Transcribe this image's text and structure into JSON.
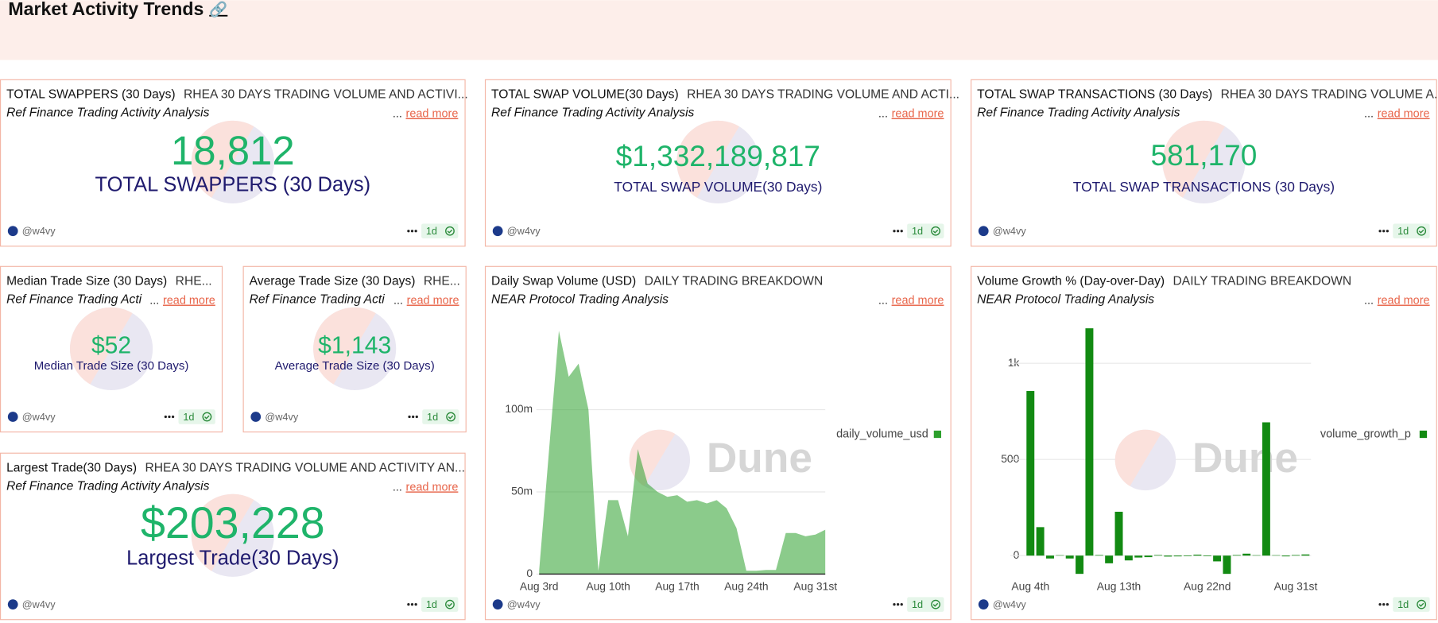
{
  "header": {
    "title": "Market Activity Trends",
    "icon": "🔗"
  },
  "common": {
    "author": "@w4vy",
    "refresh": "1d",
    "read_more": "read more",
    "ellipsis": "..."
  },
  "counters": [
    {
      "title": "TOTAL SWAPPERS (30 Days)",
      "query": "RHEA 30 DAYS TRADING VOLUME AND ACTIVI...",
      "description": "Ref Finance Trading Activity Analysis",
      "value": "18,812",
      "label": "TOTAL SWAPPERS (30 Days)"
    },
    {
      "title": "TOTAL SWAP VOLUME(30 Days)",
      "query": "RHEA 30 DAYS TRADING VOLUME AND ACTI...",
      "description": "Ref Finance Trading Activity Analysis",
      "value": "$1,332,189,817",
      "label": "TOTAL SWAP VOLUME(30 Days)"
    },
    {
      "title": "TOTAL SWAP TRANSACTIONS (30 Days)",
      "query": "RHEA 30 DAYS TRADING VOLUME A...",
      "description": "Ref Finance Trading Activity Analysis",
      "value": "581,170",
      "label": "TOTAL SWAP TRANSACTIONS (30 Days)"
    },
    {
      "title": "Median Trade Size (30 Days)",
      "query": "RHE...",
      "description": "Ref Finance Trading Acti",
      "value": "$52",
      "label": "Median Trade Size (30 Days)"
    },
    {
      "title": "Average Trade Size (30 Days)",
      "query": "RHE...",
      "description": "Ref Finance Trading Acti",
      "value": "$1,143",
      "label": "Average Trade Size (30 Days)"
    },
    {
      "title": "Largest Trade(30 Days)",
      "query": "RHEA 30 DAYS TRADING VOLUME AND ACTIVITY AN...",
      "description": "Ref Finance Trading Activity Analysis",
      "value": "$203,228",
      "label": "Largest Trade(30 Days)"
    }
  ],
  "chart_data": [
    {
      "type": "area",
      "title": "Daily Swap Volume (USD)",
      "subtitle": "DAILY TRADING BREAKDOWN",
      "description": "NEAR Protocol Trading Analysis",
      "categories": [
        "Aug 3rd",
        null,
        null,
        null,
        null,
        null,
        null,
        "Aug 10th",
        null,
        null,
        null,
        null,
        null,
        null,
        "Aug 17th",
        null,
        null,
        null,
        null,
        null,
        null,
        "Aug 24th",
        null,
        null,
        null,
        null,
        null,
        null,
        "Aug 31st",
        null
      ],
      "series": [
        {
          "name": "daily_volume_usd",
          "color": "#2ca02c",
          "values": [
            2000000,
            75000000,
            148000000,
            120000000,
            128000000,
            100000000,
            2000000,
            45000000,
            45000000,
            23000000,
            76000000,
            55000000,
            50000000,
            47000000,
            48000000,
            44000000,
            45000000,
            43000000,
            45000000,
            40000000,
            28000000,
            2000000,
            2000000,
            2500000,
            2500000,
            25000000,
            25000000,
            23000000,
            24000000,
            27000000
          ]
        }
      ],
      "ylim": [
        0,
        160000000
      ],
      "yticks": [
        0,
        {
          "value": 50000000,
          "label": "50m"
        },
        {
          "value": 100000000,
          "label": "100m"
        }
      ],
      "grid": true,
      "legend": "right",
      "watermark": "Dune"
    },
    {
      "type": "bar",
      "title": "Volume Growth % (Day-over-Day)",
      "subtitle": "DAILY TRADING BREAKDOWN",
      "description": "NEAR Protocol Trading Analysis",
      "categories": [
        "Aug 4th",
        null,
        null,
        null,
        null,
        null,
        null,
        null,
        null,
        "Aug 13th",
        null,
        null,
        null,
        null,
        null,
        null,
        null,
        null,
        "Aug 22nd",
        null,
        null,
        null,
        null,
        null,
        null,
        null,
        null,
        "Aug 31st",
        null
      ],
      "series": [
        {
          "name": "volume_growth_p",
          "color": "#128a12",
          "values": [
            856,
            148,
            -15,
            2,
            -15,
            -95,
            1182,
            3,
            -40,
            228,
            -25,
            -10,
            -8,
            3,
            -5,
            -4,
            -3,
            5,
            -3,
            -30,
            -95,
            3,
            10,
            2,
            693,
            2,
            -4,
            3,
            6
          ]
        }
      ],
      "ylim": [
        -120,
        1200
      ],
      "yticks": [
        0,
        500,
        {
          "value": 1000,
          "label": "1k"
        }
      ],
      "grid": true,
      "legend": "right",
      "watermark": "Dune"
    }
  ]
}
